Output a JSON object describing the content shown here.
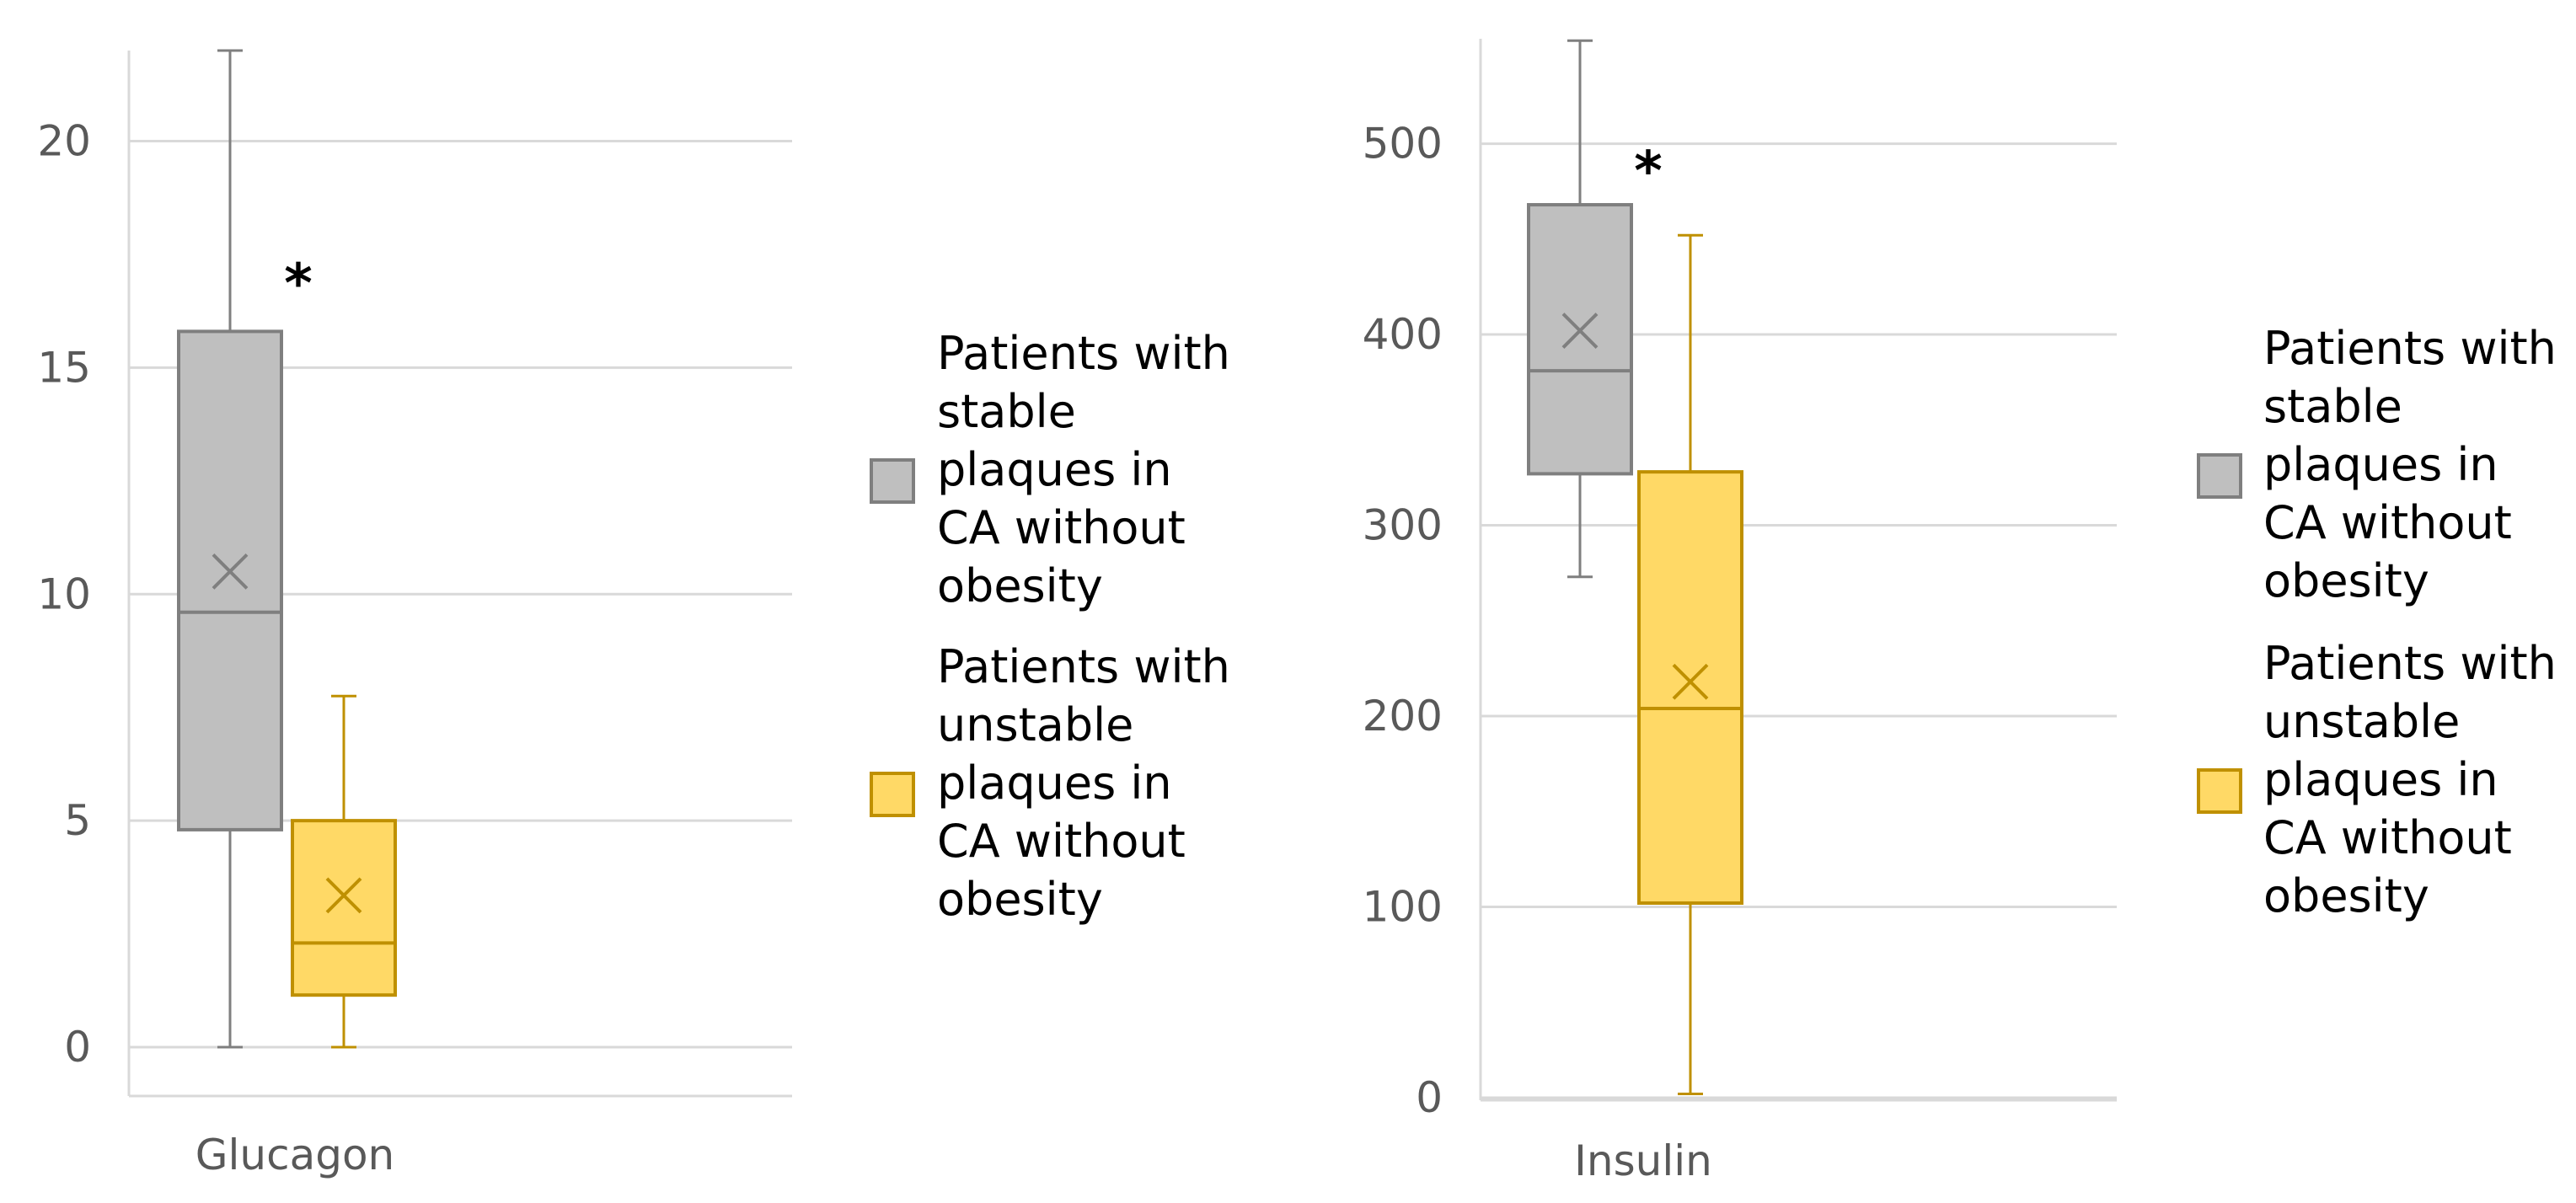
{
  "chart_data": [
    {
      "type": "box",
      "category": "Glucagon",
      "ylim": [
        0,
        22
      ],
      "yticks": [
        0,
        5,
        10,
        15,
        20
      ],
      "grid": true,
      "legend_position": "right",
      "series": [
        {
          "name": "Patients with stable plaques in CA without obesity",
          "legend_lines": [
            "Patients with",
            "stable",
            "plaques in",
            "CA without",
            "obesity"
          ],
          "fill": "#bfbfbf",
          "stroke": "#7f7f7f",
          "min": 0,
          "q1": 4.8,
          "median": 9.6,
          "q3": 15.8,
          "max": 22,
          "mean": 10.5,
          "marker": "*"
        },
        {
          "name": "Patients with unstable plaques in CA without obesity",
          "legend_lines": [
            "Patients with",
            "unstable",
            "plaques in",
            "CA without",
            "obesity"
          ],
          "fill": "#ffd966",
          "stroke": "#bf9000",
          "min": 0,
          "q1": 1.15,
          "median": 2.3,
          "q3": 5.0,
          "max": 7.75,
          "mean": 3.35,
          "marker": ""
        }
      ]
    },
    {
      "type": "box",
      "category": "Insulin",
      "ylim": [
        0,
        555
      ],
      "yticks": [
        0,
        100,
        200,
        300,
        400,
        500
      ],
      "grid": true,
      "legend_position": "right",
      "series": [
        {
          "name": "Patients with stable plaques in CA without obesity",
          "legend_lines": [
            "Patients with",
            "stable",
            "plaques in",
            "CA without",
            "obesity"
          ],
          "fill": "#bfbfbf",
          "stroke": "#7f7f7f",
          "min": 273,
          "q1": 327,
          "median": 381,
          "q3": 468,
          "max": 554,
          "mean": 402,
          "marker": "*"
        },
        {
          "name": "Patients with unstable plaques in CA without obesity",
          "legend_lines": [
            "Patients with",
            "unstable",
            "plaques in",
            "CA without",
            "obesity"
          ],
          "fill": "#ffd966",
          "stroke": "#bf9000",
          "min": 2,
          "q1": 102,
          "median": 204,
          "q3": 328,
          "max": 452,
          "mean": 218,
          "marker": ""
        }
      ]
    }
  ]
}
